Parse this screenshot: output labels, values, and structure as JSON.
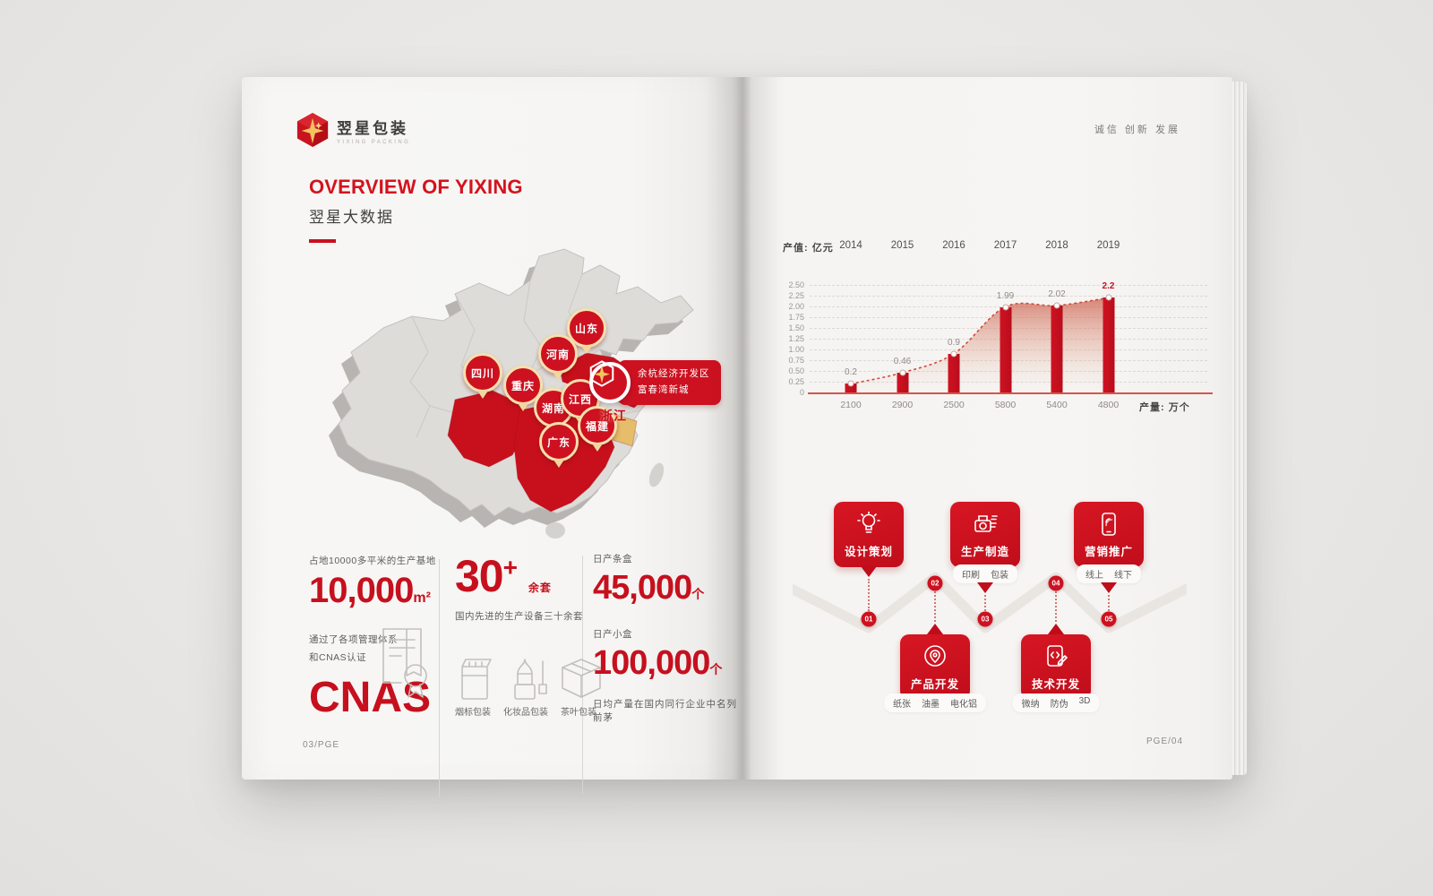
{
  "brand": {
    "logo_text": "翌星包装",
    "logo_sub": "YIXING PACKING"
  },
  "left_page": {
    "title_en": "OVERVIEW OF YIXING",
    "title_cn": "翌星大数据",
    "map": {
      "pins": [
        {
          "label": "山东"
        },
        {
          "label": "河南"
        },
        {
          "label": "四川"
        },
        {
          "label": "重庆"
        },
        {
          "label": "湖南"
        },
        {
          "label": "江西"
        },
        {
          "label": "福建"
        },
        {
          "label": "广东"
        }
      ],
      "region_label": "浙江",
      "callout": {
        "line1": "余杭经济开发区",
        "line2": "富春湾新城"
      }
    },
    "stats": {
      "base_caption": "占地10000多平米的生产基地",
      "base_value": "10,000",
      "base_unit": "m²",
      "equip_value": "30",
      "equip_plus": "+",
      "equip_unit": "余套",
      "equip_caption": "国内先进的生产设备三十余套",
      "cert_caption1": "通过了各项管理体系",
      "cert_caption2": "和CNAS认证",
      "cert_value": "CNAS",
      "packaging_types": [
        "烟标包装",
        "化妆品包装",
        "茶叶包装"
      ],
      "carton_caption": "日产条盒",
      "carton_value": "45,000",
      "carton_unit": "个",
      "box_caption": "日产小盒",
      "box_value": "100,000",
      "box_unit": "个",
      "rank_caption": "日均产量在国内同行企业中名列前茅"
    },
    "footer": "03/PGE"
  },
  "right_page": {
    "header": "诚信 创新 发展",
    "footer": "PGE/04"
  },
  "chart_data": {
    "type": "bar",
    "title": "产值: 亿元",
    "categories": [
      "2014",
      "2015",
      "2016",
      "2017",
      "2018",
      "2019"
    ],
    "series": [
      {
        "name": "产值(亿元)",
        "values": [
          0.2,
          0.46,
          0.9,
          1.99,
          2.02,
          2.2
        ]
      },
      {
        "name": "产量(万个)",
        "values": [
          2100,
          2900,
          2500,
          5800,
          5400,
          4800
        ]
      }
    ],
    "value_labels": [
      "0.2",
      "0.46",
      "0.9",
      "1.99",
      "2.02",
      "2.2"
    ],
    "output_labels": [
      "2100",
      "2900",
      "2500",
      "5800",
      "5400",
      "4800"
    ],
    "output_title": "产量: 万个",
    "y_ticks": [
      "0",
      "0.25",
      "0.50",
      "0.75",
      "1.00",
      "1.25",
      "1.50",
      "1.75",
      "2.00",
      "2.25",
      "2.50"
    ],
    "ylim": [
      0,
      2.5
    ],
    "grid": true,
    "highlight_last": true
  },
  "flow": {
    "top": [
      {
        "label": "设计策划",
        "icon": "bulb-icon",
        "subs": []
      },
      {
        "label": "生产制造",
        "icon": "press-icon",
        "subs": [
          "印刷",
          "包装"
        ]
      },
      {
        "label": "营销推广",
        "icon": "phone-icon",
        "subs": [
          "线上",
          "线下"
        ]
      }
    ],
    "bottom": [
      {
        "label": "产品开发",
        "icon": "pin-icon",
        "subs": [
          "纸张",
          "油墨",
          "电化铝"
        ]
      },
      {
        "label": "技术开发",
        "icon": "code-icon",
        "subs": [
          "微纳",
          "防伪",
          "3D"
        ]
      }
    ],
    "steps": [
      "01",
      "02",
      "03",
      "04",
      "05"
    ]
  },
  "colors": {
    "primary_red": "#c9101e",
    "gold": "#e9b75a",
    "pin_ring": "#f6e0ad",
    "paper": "#f6f5f3",
    "map_gray": "#dddbd8"
  }
}
